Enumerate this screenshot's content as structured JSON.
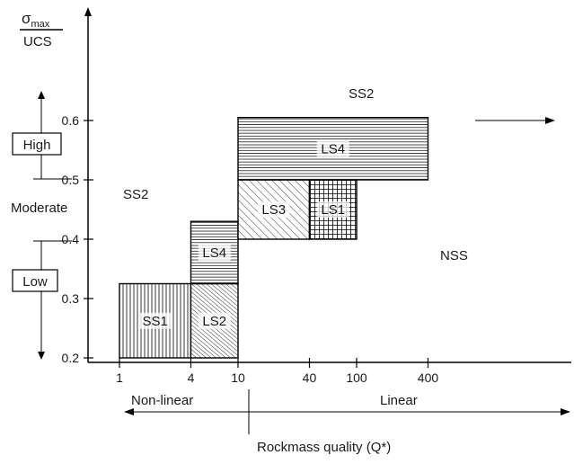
{
  "y_axis": {
    "title_numerator": "σmax",
    "title_numerator_symbol": "σ",
    "title_numerator_subscript": "max",
    "title_denominator": "UCS",
    "ticks": [
      {
        "value": 0.6,
        "label": "0.6"
      },
      {
        "value": 0.5,
        "label": "0.5"
      },
      {
        "value": 0.4,
        "label": "0.4"
      },
      {
        "value": 0.3,
        "label": "0.3"
      },
      {
        "value": 0.2,
        "label": "0.2"
      }
    ],
    "range": [
      0.2,
      0.6
    ],
    "levels": {
      "high": "High",
      "moderate": "Moderate",
      "low": "Low"
    }
  },
  "x_axis": {
    "scale": "log",
    "ticks": [
      {
        "value": 1,
        "label": "1"
      },
      {
        "value": 4,
        "label": "4"
      },
      {
        "value": 10,
        "label": "10"
      },
      {
        "value": 40,
        "label": "40"
      },
      {
        "value": 100,
        "label": "100"
      },
      {
        "value": 400,
        "label": "400"
      }
    ],
    "title": "Rockmass quality (Q*)",
    "nonlinear_label": "Non-linear",
    "linear_label": "Linear"
  },
  "regions": [
    {
      "id": "ss1",
      "label": "SS1",
      "q_min": 1,
      "q_max": 4,
      "s_min": 0.2,
      "s_max": 0.325,
      "pattern": "vertical"
    },
    {
      "id": "ls2",
      "label": "LS2",
      "q_min": 4,
      "q_max": 10,
      "s_min": 0.2,
      "s_max": 0.325,
      "pattern": "diagonal-dense"
    },
    {
      "id": "ls4-small",
      "label": "LS4",
      "q_min": 4,
      "q_max": 10,
      "s_min": 0.325,
      "s_max": 0.43,
      "pattern": "horizontal"
    },
    {
      "id": "ls3",
      "label": "LS3",
      "q_min": 10,
      "q_max": 40,
      "s_min": 0.4,
      "s_max": 0.5,
      "pattern": "diagonal"
    },
    {
      "id": "ls1",
      "label": "LS1",
      "q_min": 40,
      "q_max": 100,
      "s_min": 0.4,
      "s_max": 0.5,
      "pattern": "grid"
    },
    {
      "id": "ls4-large",
      "label": "LS4",
      "q_min": 10,
      "q_max": 400,
      "s_min": 0.5,
      "s_max": 0.605,
      "pattern": "horizontal"
    }
  ],
  "zone_labels": {
    "ss2_top": "SS2",
    "ss2_left": "SS2",
    "nss": "NSS"
  }
}
